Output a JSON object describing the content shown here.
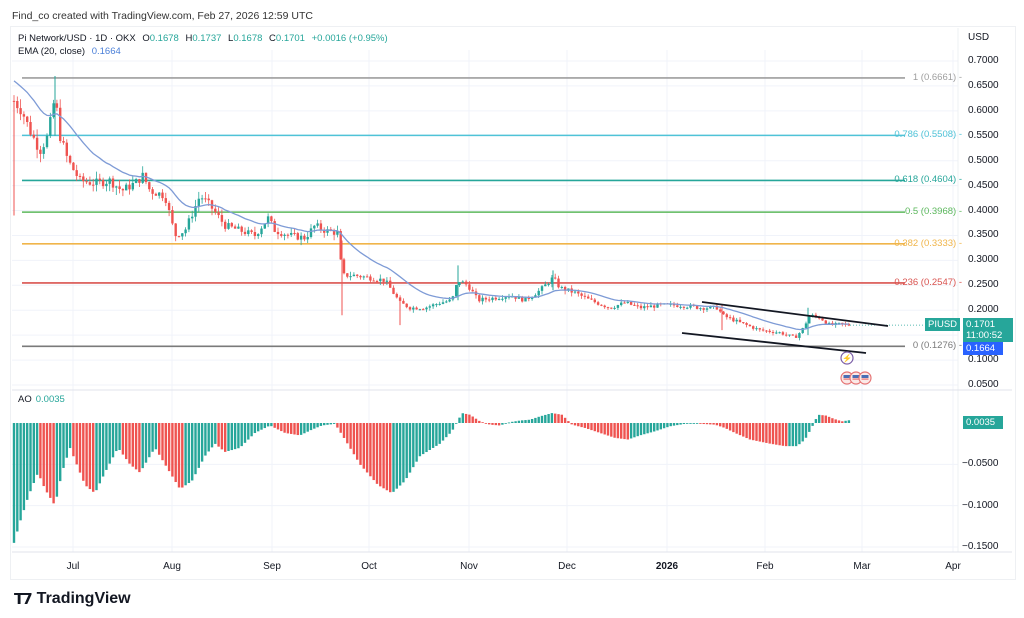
{
  "header": {
    "credit": "Find_co created with TradingView.com, Feb 27, 2026 12:59 UTC"
  },
  "legend": {
    "symbol": "Pi Network/USD · 1D · OKX",
    "o_label": "O",
    "o": "0.1678",
    "h_label": "H",
    "h": "0.1737",
    "l_label": "L",
    "l": "0.1678",
    "c_label": "C",
    "c": "0.1701",
    "change": "+0.0016 (+0.95%)",
    "ema_label": "EMA (20, close)",
    "ema_value": "0.1664"
  },
  "price_axis": {
    "currency": "USD",
    "ticks": [
      "0.7000",
      "0.6500",
      "0.6000",
      "0.5500",
      "0.5000",
      "0.4500",
      "0.4000",
      "0.3500",
      "0.3000",
      "0.2500",
      "0.2000",
      "0.1500",
      "0.1000",
      "0.0500"
    ]
  },
  "tags": {
    "symbol_tag": "PIUSD",
    "last_price": "0.1701",
    "countdown": "11:00:52",
    "ema_price": "0.1664",
    "ao_value": "0.0035"
  },
  "fib_levels": [
    {
      "label": "1 (0.6661)",
      "value": 0.6661,
      "color": "#9e9e9e"
    },
    {
      "label": "0.786 (0.5508)",
      "value": 0.5508,
      "color": "#4fc3d7"
    },
    {
      "label": "0.618 (0.4604)",
      "value": 0.4604,
      "color": "#26a69a"
    },
    {
      "label": "0.5 (0.3968)",
      "value": 0.3968,
      "color": "#5cb85c"
    },
    {
      "label": "0.382 (0.3333)",
      "value": 0.3333,
      "color": "#f0b54a"
    },
    {
      "label": "0.236 (0.2547)",
      "value": 0.2547,
      "color": "#d9534f"
    },
    {
      "label": "0 (0.1276)",
      "value": 0.1276,
      "color": "#7a7a7a"
    }
  ],
  "ao_panel": {
    "label": "AO",
    "value": "0.0035",
    "ticks": [
      "-0.0500",
      "-0.1000",
      "-0.1500"
    ]
  },
  "time_axis": {
    "labels": [
      {
        "text": "Jul",
        "bold": false
      },
      {
        "text": "Aug",
        "bold": false
      },
      {
        "text": "Sep",
        "bold": false
      },
      {
        "text": "Oct",
        "bold": false
      },
      {
        "text": "Nov",
        "bold": false
      },
      {
        "text": "Dec",
        "bold": false
      },
      {
        "text": "2026",
        "bold": true
      },
      {
        "text": "Feb",
        "bold": false
      },
      {
        "text": "Mar",
        "bold": false
      },
      {
        "text": "Apr",
        "bold": false
      }
    ]
  },
  "branding": {
    "name": "TradingView",
    "mark": "TV"
  },
  "colors": {
    "up": "#26a69a",
    "down": "#ef5350",
    "ema": "#7e9bd6",
    "ema_tag": "#2962ff",
    "trendline": "#131722"
  },
  "chart_data": [
    {
      "type": "candlestick",
      "title": "Pi Network/USD · 1D · OKX",
      "xlabel": "",
      "ylabel": "USD",
      "ylim": [
        0.03,
        0.72
      ],
      "x_ticks": [
        "Jul",
        "Aug",
        "Sep",
        "Oct",
        "Nov",
        "Dec",
        "2026",
        "Feb",
        "Mar",
        "Apr"
      ],
      "ohlc_last": {
        "open": 0.1678,
        "high": 0.1737,
        "low": 0.1678,
        "close": 0.1701,
        "change": 0.0016,
        "change_pct": 0.95
      },
      "approx_close_path": [
        {
          "x": "Jun 15",
          "close": 0.62
        },
        {
          "x": "Jun 25",
          "close": 0.55
        },
        {
          "x": "Jun 28",
          "close": 0.63
        },
        {
          "x": "Jul 1",
          "close": 0.52
        },
        {
          "x": "Jul 10",
          "close": 0.46
        },
        {
          "x": "Jul 20",
          "close": 0.44
        },
        {
          "x": "Jul 25",
          "close": 0.47
        },
        {
          "x": "Aug 1",
          "close": 0.43
        },
        {
          "x": "Aug 5",
          "close": 0.35
        },
        {
          "x": "Aug 10",
          "close": 0.42
        },
        {
          "x": "Aug 20",
          "close": 0.36
        },
        {
          "x": "Sep 1",
          "close": 0.38
        },
        {
          "x": "Sep 10",
          "close": 0.35
        },
        {
          "x": "Sep 20",
          "close": 0.36
        },
        {
          "x": "Sep 22",
          "close": 0.27
        },
        {
          "x": "Oct 1",
          "close": 0.26
        },
        {
          "x": "Oct 10",
          "close": 0.21
        },
        {
          "x": "Oct 25",
          "close": 0.22
        },
        {
          "x": "Oct 30",
          "close": 0.26
        },
        {
          "x": "Nov 5",
          "close": 0.23
        },
        {
          "x": "Nov 20",
          "close": 0.24
        },
        {
          "x": "Nov 27",
          "close": 0.27
        },
        {
          "x": "Dec 5",
          "close": 0.23
        },
        {
          "x": "Dec 20",
          "close": 0.205
        },
        {
          "x": "Jan 1",
          "close": 0.21
        },
        {
          "x": "Jan 10",
          "close": 0.205
        },
        {
          "x": "Jan 18",
          "close": 0.185
        },
        {
          "x": "Feb 1",
          "close": 0.16
        },
        {
          "x": "Feb 10",
          "close": 0.145
        },
        {
          "x": "Feb 15",
          "close": 0.185
        },
        {
          "x": "Feb 20",
          "close": 0.178
        },
        {
          "x": "Feb 27",
          "close": 0.1701
        }
      ],
      "series": [
        {
          "name": "EMA (20, close)",
          "last": 0.1664,
          "color": "#7e9bd6"
        }
      ],
      "fibonacci_retracement": [
        {
          "level": 1,
          "price": 0.6661
        },
        {
          "level": 0.786,
          "price": 0.5508
        },
        {
          "level": 0.618,
          "price": 0.4604
        },
        {
          "level": 0.5,
          "price": 0.3968
        },
        {
          "level": 0.382,
          "price": 0.3333
        },
        {
          "level": 0.236,
          "price": 0.2547
        },
        {
          "level": 0,
          "price": 0.1276
        }
      ],
      "annotations": [
        "Descending channel trendlines (Jan–Mar 2026)",
        "Event markers near Mar"
      ],
      "grid": true,
      "legend_position": "top-left"
    },
    {
      "type": "bar",
      "title": "AO",
      "ylabel": "",
      "ylim": [
        -0.16,
        0.03
      ],
      "last_value": 0.0035,
      "y_ticks": [
        -0.05,
        -0.1,
        -0.15
      ],
      "approx_path": [
        {
          "x": "Jun 15",
          "value": -0.145
        },
        {
          "x": "Jun 25",
          "value": -0.09
        },
        {
          "x": "Jul 5",
          "value": -0.1
        },
        {
          "x": "Jul 15",
          "value": -0.03
        },
        {
          "x": "Aug 1",
          "value": -0.085
        },
        {
          "x": "Aug 15",
          "value": -0.05
        },
        {
          "x": "Sep 1",
          "value": -0.03
        },
        {
          "x": "Sep 10",
          "value": -0.007
        },
        {
          "x": "Sep 20",
          "value": -0.015
        },
        {
          "x": "Oct 1",
          "value": -0.05
        },
        {
          "x": "Oct 12",
          "value": -0.08
        },
        {
          "x": "Oct 25",
          "value": -0.02
        },
        {
          "x": "Nov 1",
          "value": 0.012
        },
        {
          "x": "Nov 15",
          "value": -0.002
        },
        {
          "x": "Nov 28",
          "value": 0.012
        },
        {
          "x": "Dec 10",
          "value": -0.01
        },
        {
          "x": "Dec 20",
          "value": -0.02
        },
        {
          "x": "Jan 5",
          "value": -0.001
        },
        {
          "x": "Jan 20",
          "value": -0.01
        },
        {
          "x": "Feb 5",
          "value": -0.025
        },
        {
          "x": "Feb 12",
          "value": -0.03
        },
        {
          "x": "Feb 18",
          "value": 0.01
        },
        {
          "x": "Feb 27",
          "value": 0.0035
        }
      ]
    }
  ]
}
